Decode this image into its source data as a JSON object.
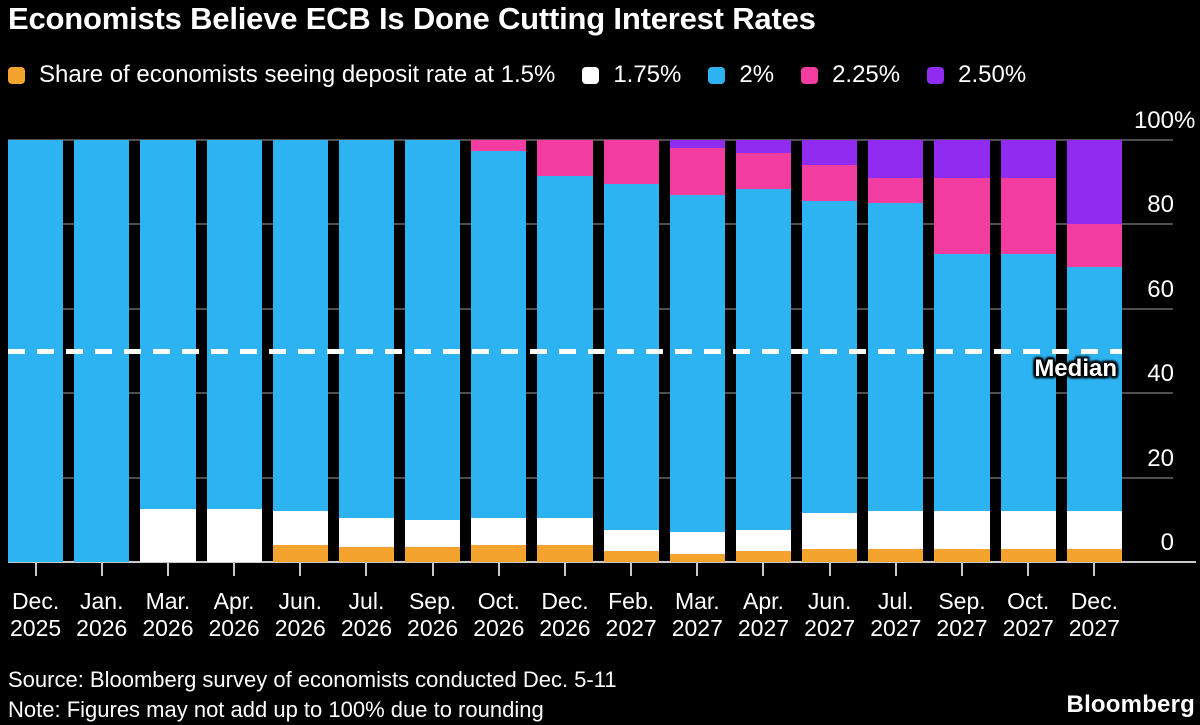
{
  "title": "Economists Believe ECB Is Done Cutting Interest Rates",
  "legend": [
    {
      "label": "Share of economists seeing deposit rate at 1.5%",
      "color": "#F5A32F"
    },
    {
      "label": "1.75%",
      "color": "#FFFFFF"
    },
    {
      "label": "2%",
      "color": "#2EB3F2"
    },
    {
      "label": "2.25%",
      "color": "#F23CA0"
    },
    {
      "label": "2.50%",
      "color": "#8F2CF0"
    }
  ],
  "chart_data": {
    "type": "bar",
    "stacked": true,
    "unit": "%",
    "ylim": [
      0,
      100
    ],
    "grid": true,
    "legend_position": "top",
    "yticks": [
      {
        "value": 100,
        "label": "100",
        "suffix": "%"
      },
      {
        "value": 80,
        "label": "80",
        "suffix": ""
      },
      {
        "value": 60,
        "label": "60",
        "suffix": ""
      },
      {
        "value": 40,
        "label": "40",
        "suffix": ""
      },
      {
        "value": 20,
        "label": "20",
        "suffix": ""
      },
      {
        "value": 0,
        "label": "0",
        "suffix": ""
      }
    ],
    "median_line": {
      "label": "Median",
      "value": 50
    },
    "categories": [
      {
        "month": "Dec.",
        "year": "2025"
      },
      {
        "month": "Jan.",
        "year": "2026"
      },
      {
        "month": "Mar.",
        "year": "2026"
      },
      {
        "month": "Apr.",
        "year": "2026"
      },
      {
        "month": "Jun.",
        "year": "2026"
      },
      {
        "month": "Jul.",
        "year": "2026"
      },
      {
        "month": "Sep.",
        "year": "2026"
      },
      {
        "month": "Oct.",
        "year": "2026"
      },
      {
        "month": "Dec.",
        "year": "2026"
      },
      {
        "month": "Feb.",
        "year": "2027"
      },
      {
        "month": "Mar.",
        "year": "2027"
      },
      {
        "month": "Apr.",
        "year": "2027"
      },
      {
        "month": "Jun.",
        "year": "2027"
      },
      {
        "month": "Jul.",
        "year": "2027"
      },
      {
        "month": "Sep.",
        "year": "2027"
      },
      {
        "month": "Oct.",
        "year": "2027"
      },
      {
        "month": "Dec.",
        "year": "2027"
      }
    ],
    "series": [
      {
        "name": "1.5%",
        "color": "#F5A32F",
        "values": [
          0,
          0,
          0,
          0,
          4,
          3.5,
          3.5,
          4,
          4,
          2.5,
          2,
          2.5,
          3,
          3,
          3,
          3,
          3
        ]
      },
      {
        "name": "1.75%",
        "color": "#FFFFFF",
        "values": [
          0,
          0,
          12.5,
          12.5,
          8,
          7,
          6.5,
          6.5,
          6.5,
          5,
          5,
          5,
          8.5,
          9,
          9,
          9,
          9
        ]
      },
      {
        "name": "2%",
        "color": "#2EB3F2",
        "values": [
          100,
          100,
          87.5,
          87.5,
          88,
          89.5,
          90,
          87,
          81,
          82,
          80,
          81,
          74,
          73,
          61,
          61,
          58
        ]
      },
      {
        "name": "2.25%",
        "color": "#F23CA0",
        "values": [
          0,
          0,
          0,
          0,
          0,
          0,
          0,
          2.5,
          8.5,
          10.5,
          11,
          8.5,
          8.5,
          6,
          18,
          18,
          10
        ]
      },
      {
        "name": "2.50%",
        "color": "#8F2CF0",
        "values": [
          0,
          0,
          0,
          0,
          0,
          0,
          0,
          0,
          0,
          0,
          2,
          3,
          6,
          9,
          9,
          9,
          20
        ]
      }
    ]
  },
  "footer": {
    "source": "Source: Bloomberg survey of economists conducted Dec. 5-11",
    "note": "Note: Figures may not add up to 100% due to rounding",
    "brand": "Bloomberg"
  }
}
